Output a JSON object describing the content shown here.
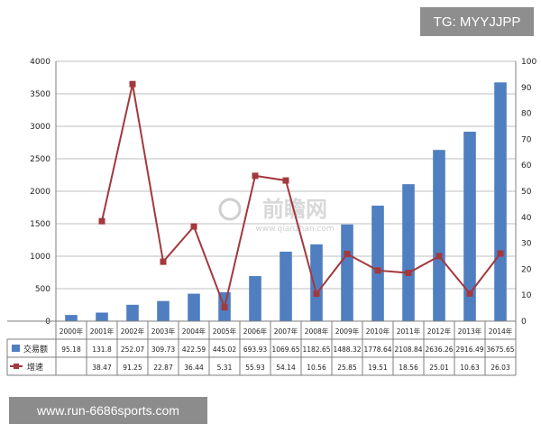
{
  "overlay": {
    "tag_text": "TG: MYYJJPP",
    "url_text": "www.run-6686sports.com"
  },
  "watermark": {
    "text": "前瞻网",
    "subtext": "www.qianzhan.com"
  },
  "colors": {
    "bar": "#4f7fc0",
    "line": "#a3383d",
    "grid": "#bfbfbf",
    "axis": "#7f7f7f",
    "watermark": "#cfcfcf"
  },
  "chart_data": {
    "type": "bar",
    "categories": [
      "2000年",
      "2001年",
      "2002年",
      "2003年",
      "2004年",
      "2005年",
      "2006年",
      "2007年",
      "2008年",
      "2009年",
      "2010年",
      "2011年",
      "2012年",
      "2013年",
      "2014年"
    ],
    "series": [
      {
        "name": "交易额",
        "type": "bar",
        "axis": "left",
        "values": [
          95.18,
          131.8,
          252.07,
          309.73,
          422.59,
          445.02,
          693.93,
          1069.65,
          1182.65,
          1488.32,
          1778.64,
          2108.84,
          2636.26,
          2916.49,
          3675.65
        ],
        "labels": [
          "95.18",
          "131.8",
          "252.07",
          "309.73",
          "422.59",
          "445.02",
          "693.93",
          "1069.65",
          "1182.65",
          "1488.32",
          "1778.64",
          "2108.84",
          "2636.26",
          "2916.49",
          "3675.65"
        ]
      },
      {
        "name": "增速",
        "type": "line",
        "axis": "right",
        "values": [
          null,
          38.47,
          91.25,
          22.87,
          36.44,
          5.31,
          55.93,
          54.14,
          10.56,
          25.85,
          19.51,
          18.56,
          25.01,
          10.63,
          26.03
        ],
        "labels": [
          "",
          "38.47",
          "91.25",
          "22.87",
          "36.44",
          "5.31",
          "55.93",
          "54.14",
          "10.56",
          "25.85",
          "19.51",
          "18.56",
          "25.01",
          "10.63",
          "26.03"
        ]
      }
    ],
    "y_left": {
      "min": 0,
      "max": 4000,
      "ticks": [
        "0",
        "500",
        "1000",
        "1500",
        "2000",
        "2500",
        "3000",
        "3500",
        "4000"
      ]
    },
    "y_right": {
      "min": 0,
      "max": 100,
      "ticks": [
        "0",
        "10",
        "20",
        "30",
        "40",
        "50",
        "60",
        "70",
        "80",
        "90",
        "100"
      ]
    },
    "grid": true,
    "legend": "table-bottom"
  }
}
